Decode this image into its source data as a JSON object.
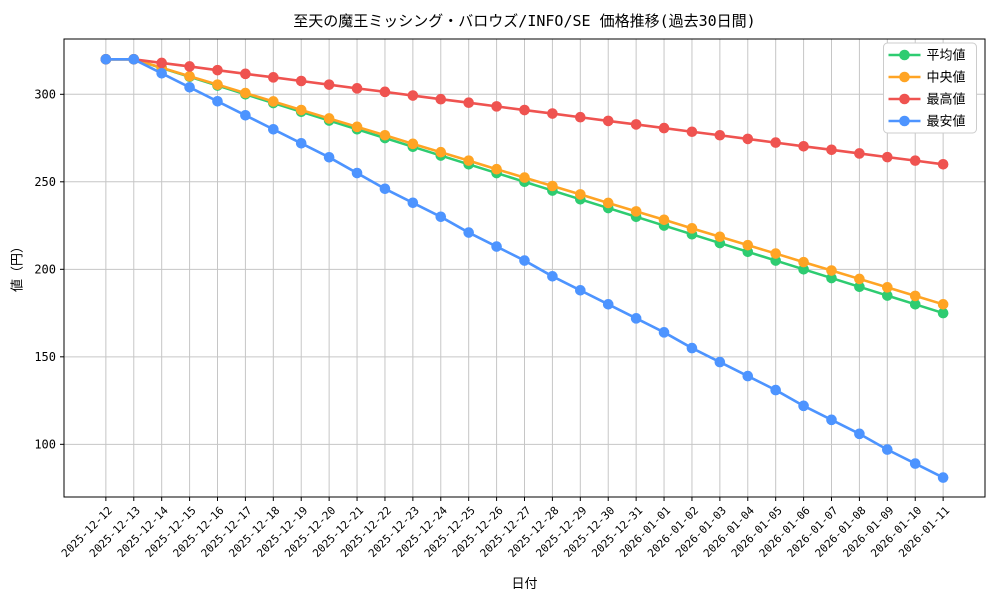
{
  "chart_data": {
    "type": "line",
    "title": "至天の魔王ミッシング・バロウズ/INFO/SE 価格推移(過去30日間)",
    "xlabel": "日付",
    "ylabel": "値（円）",
    "x": [
      "2025-12-12",
      "2025-12-13",
      "2025-12-14",
      "2025-12-15",
      "2025-12-16",
      "2025-12-17",
      "2025-12-18",
      "2025-12-19",
      "2025-12-20",
      "2025-12-21",
      "2025-12-22",
      "2025-12-23",
      "2025-12-24",
      "2025-12-25",
      "2025-12-26",
      "2025-12-27",
      "2025-12-28",
      "2025-12-29",
      "2025-12-30",
      "2025-12-31",
      "2026-01-01",
      "2026-01-02",
      "2026-01-03",
      "2026-01-04",
      "2026-01-05",
      "2026-01-06",
      "2026-01-07",
      "2026-01-08",
      "2026-01-09",
      "2026-01-10",
      "2026-01-11"
    ],
    "series": [
      {
        "name": "平均値",
        "color": "#2ecc71",
        "values": [
          320,
          320,
          315,
          310,
          305,
          300,
          295,
          290,
          285,
          280,
          275,
          270,
          265,
          260,
          255,
          250,
          245,
          240,
          235,
          230,
          225,
          220,
          215,
          210,
          205,
          200,
          195,
          190,
          185,
          180,
          175
        ]
      },
      {
        "name": "中央値",
        "color": "#ffa424",
        "values": [
          320,
          320,
          315.2,
          310.3,
          305.5,
          300.7,
          295.9,
          291,
          286.2,
          281.4,
          276.6,
          271.7,
          266.9,
          262.1,
          257.2,
          252.4,
          247.6,
          242.8,
          237.9,
          233.1,
          228.3,
          223.4,
          218.6,
          213.8,
          209,
          204.1,
          199.3,
          194.5,
          189.7,
          184.8,
          180
        ]
      },
      {
        "name": "最高値",
        "color": "#ef5350",
        "values": [
          320,
          320,
          317.9,
          315.9,
          313.8,
          311.7,
          309.7,
          307.6,
          305.5,
          303.4,
          301.4,
          299.3,
          297.2,
          295.2,
          293.1,
          291,
          289,
          286.9,
          284.8,
          282.8,
          280.7,
          278.6,
          276.6,
          274.5,
          272.4,
          270.3,
          268.3,
          266.2,
          264.1,
          262.1,
          260
        ]
      },
      {
        "name": "最安値",
        "color": "#4d94ff",
        "values": [
          320,
          320,
          312,
          304,
          296,
          288,
          280,
          272,
          264,
          255,
          246,
          238,
          230,
          221,
          213,
          205,
          196,
          188,
          180,
          172,
          164,
          155,
          147,
          139,
          131,
          122,
          114,
          106,
          97,
          89,
          81
        ]
      }
    ],
    "yticks": [
      100,
      150,
      200,
      250,
      300
    ],
    "ylim": [
      69.9,
      331.6
    ],
    "x_pad": 1.5,
    "grid": true,
    "grid_color": "#c6c6c6",
    "axis_color": "#000000",
    "legend_position": "top-right"
  }
}
